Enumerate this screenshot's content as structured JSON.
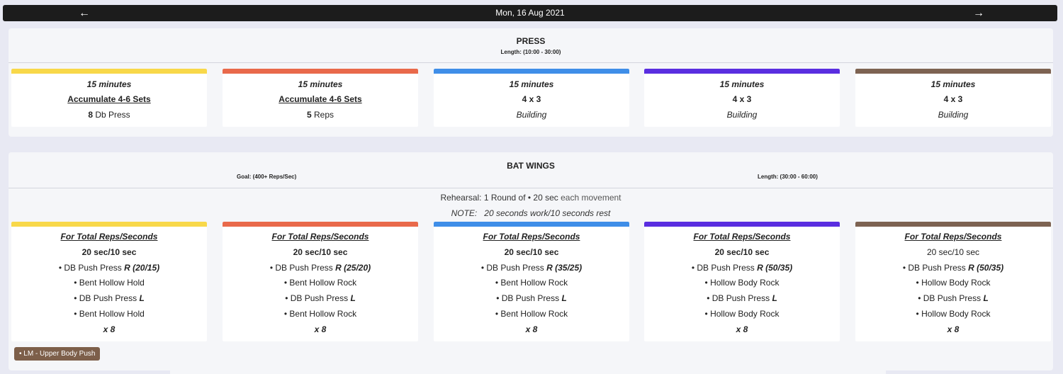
{
  "datebar": {
    "date": "Mon, 16 Aug 2021",
    "prev_icon": "←",
    "next_icon": "→"
  },
  "colors": [
    "#f8d84a",
    "#e9694b",
    "#3f8ee8",
    "#5a2ee0",
    "#7d6352"
  ],
  "press": {
    "title": "PRESS",
    "length": "Length: (10:00 - 30:00)",
    "cards": [
      {
        "time": "15 minutes",
        "scheme": "Accumulate 4-6 Sets",
        "num": "8",
        "rest": " Db Press"
      },
      {
        "time": "15 minutes",
        "scheme": "Accumulate 4-6 Sets",
        "num": "5",
        "rest": " Reps"
      },
      {
        "time": "15 minutes",
        "scheme": "4 x 3",
        "note": "Building"
      },
      {
        "time": "15 minutes",
        "scheme": "4 x 3",
        "note": "Building"
      },
      {
        "time": "15 minutes",
        "scheme": "4 x 3",
        "note": "Building"
      }
    ]
  },
  "bat": {
    "title": "BAT WINGS",
    "goal": "Goal: (400+ Reps/Sec)",
    "length": "Length: (30:00 - 60:00)",
    "rehearsal_a": "Rehearsal: 1 Round of • 20 sec",
    "rehearsal_b": " each movement",
    "note_label": "NOTE:",
    "note_text": "20 seconds work/10 seconds rest",
    "cards": [
      {
        "heading": "For Total Reps/Seconds",
        "interval": "20 sec/10 sec",
        "m1": "• DB Push Press ",
        "m1w": "R (20/15)",
        "m2": "• Bent Hollow Hold",
        "m3": "• DB Push Press ",
        "m3w": "L",
        "m4": "• Bent Hollow Hold",
        "rounds": "x 8"
      },
      {
        "heading": "For Total Reps/Seconds",
        "interval": "20 sec/10 sec",
        "m1": "• DB Push Press ",
        "m1w": "R (25/20)",
        "m2": "• Bent Hollow Rock",
        "m3": "• DB Push Press ",
        "m3w": "L",
        "m4": "• Bent Hollow Rock",
        "rounds": "x 8"
      },
      {
        "heading": "For Total Reps/Seconds",
        "interval": "20 sec/10 sec",
        "m1": "• DB Push Press ",
        "m1w": "R (35/25)",
        "m2": "• Bent Hollow Rock",
        "m3": "• DB Push Press ",
        "m3w": "L",
        "m4": "• Bent Hollow Rock",
        "rounds": "x 8"
      },
      {
        "heading": "For Total Reps/Seconds",
        "interval": "20 sec/10 sec",
        "m1": "• DB Push Press ",
        "m1w": "R (50/35)",
        "m2": "• Hollow Body Rock",
        "m3": "• DB Push Press ",
        "m3w": "L",
        "m4": "• Hollow Body Rock",
        "rounds": "x 8"
      },
      {
        "heading": "For Total Reps/Seconds",
        "interval": "20 sec/10 sec",
        "m1": "• DB Push Press ",
        "m1w": "R (50/35)",
        "m2": "• Hollow Body Rock",
        "m3": "• DB Push Press ",
        "m3w": "L",
        "m4": "• Hollow Body Rock",
        "rounds": "x 8"
      }
    ],
    "tag": "• LM - Upper Body Push"
  }
}
